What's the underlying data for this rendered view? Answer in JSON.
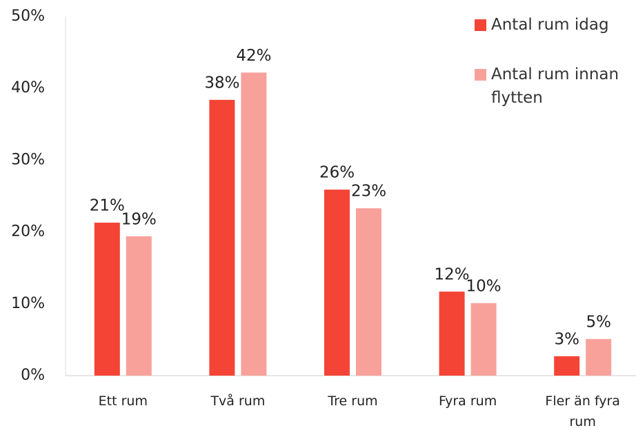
{
  "chart_data": {
    "type": "bar",
    "categories": [
      "Ett rum",
      "Två rum",
      "Tre rum",
      "Fyra rum",
      "Fler än fyra rum"
    ],
    "series": [
      {
        "name": "Antal rum idag",
        "color": "#f44436",
        "values": [
          21.3,
          38.4,
          25.9,
          11.7,
          2.7
        ],
        "value_labels": [
          "21%",
          "38%",
          "26%",
          "12%",
          "3%"
        ]
      },
      {
        "name": "Antal rum innan flytten",
        "color": "#f8a19b",
        "values": [
          19.4,
          42.2,
          23.3,
          10.1,
          5.1
        ],
        "value_labels": [
          "19%",
          "42%",
          "23%",
          "10%",
          "5%"
        ]
      }
    ],
    "ylim": [
      0,
      50
    ],
    "yticks": [
      {
        "value": 0,
        "label": "0%"
      },
      {
        "value": 10,
        "label": "10%"
      },
      {
        "value": 20,
        "label": "20%"
      },
      {
        "value": 30,
        "label": "30%"
      },
      {
        "value": 40,
        "label": "40%"
      },
      {
        "value": 50,
        "label": "50%"
      }
    ],
    "grid": false,
    "legend": "upper right"
  }
}
